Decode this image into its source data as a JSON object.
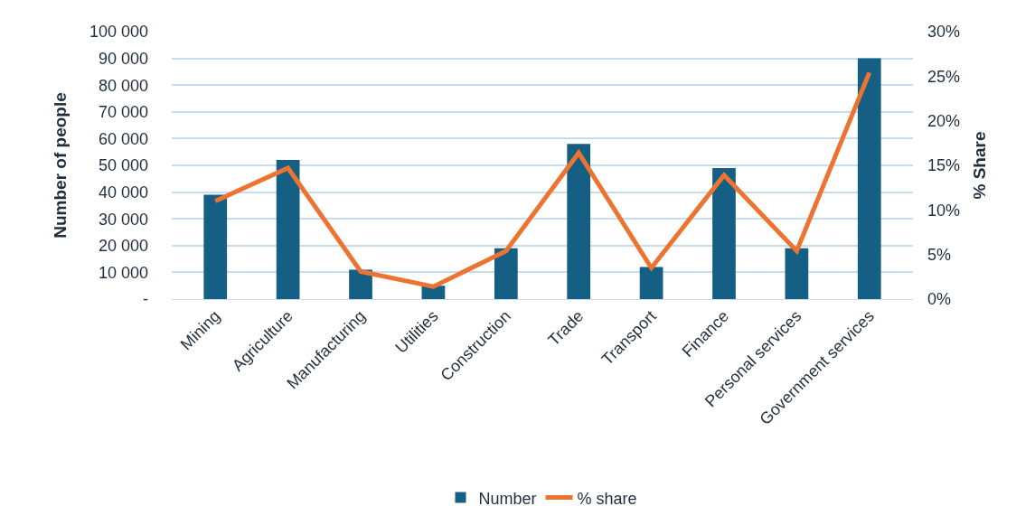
{
  "chart_data": {
    "type": "bar",
    "categories": [
      "Mining",
      "Agriculture",
      "Manufacturing",
      "Utilities",
      "Construction",
      "Trade",
      "Transport",
      "Finance",
      "Personal services",
      "Government services"
    ],
    "ylabel": "Number of people",
    "y2label": "% Share",
    "series": [
      {
        "name": "Number",
        "color": "#165f84",
        "values": [
          39000,
          52000,
          11000,
          5000,
          19000,
          58000,
          12000,
          49000,
          19000,
          90000
        ]
      },
      {
        "name": "% share",
        "type": "line",
        "axis": "y2",
        "color": "#ed7330",
        "values": [
          11,
          14.7,
          3.1,
          1.4,
          5.4,
          16.4,
          3.5,
          13.9,
          5.4,
          25.4
        ]
      }
    ],
    "ylim": [
      0,
      100000
    ],
    "yticks": [
      {
        "value": 0,
        "label": "-"
      },
      {
        "value": 10000,
        "label": "10 000"
      },
      {
        "value": 20000,
        "label": "20 000"
      },
      {
        "value": 30000,
        "label": "30 000"
      },
      {
        "value": 40000,
        "label": "40 000"
      },
      {
        "value": 50000,
        "label": "50 000"
      },
      {
        "value": 60000,
        "label": "60 000"
      },
      {
        "value": 70000,
        "label": "70 000"
      },
      {
        "value": 80000,
        "label": "80 000"
      },
      {
        "value": 90000,
        "label": "90 000"
      },
      {
        "value": 100000,
        "label": "100 000"
      }
    ],
    "y2lim": [
      0,
      30
    ],
    "y2ticks": [
      {
        "value": 0,
        "label": "0%"
      },
      {
        "value": 5,
        "label": "5%"
      },
      {
        "value": 10,
        "label": "10%"
      },
      {
        "value": 15,
        "label": "15%"
      },
      {
        "value": 20,
        "label": "20%"
      },
      {
        "value": 25,
        "label": "25%"
      },
      {
        "value": 30,
        "label": "30%"
      }
    ],
    "grid": "y",
    "legend": "bottom",
    "marker": "none",
    "line_style": "solid"
  }
}
